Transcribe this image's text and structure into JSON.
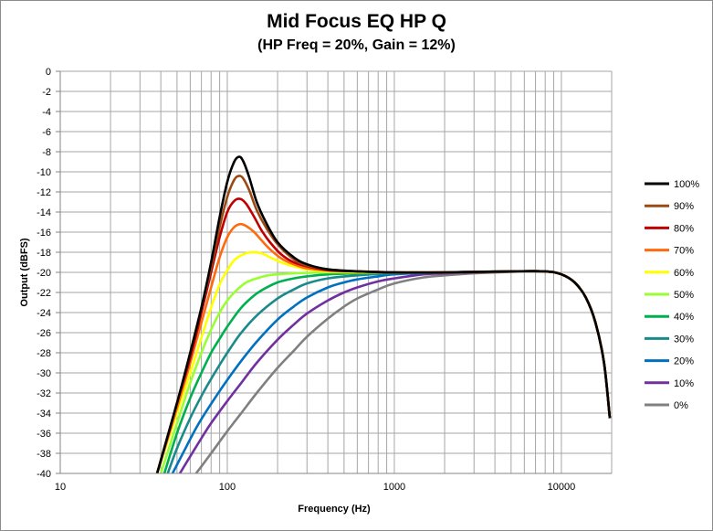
{
  "chart_data": {
    "type": "line",
    "title": "Mid Focus EQ HP Q",
    "subtitle": "(HP Freq = 20%, Gain = 12%)",
    "xlabel": "Frequency (Hz)",
    "ylabel": "Output (dBFS)",
    "xscale": "log",
    "xlim": [
      10,
      20000
    ],
    "ylim": [
      -40,
      0
    ],
    "x_ticks": [
      "10",
      "100",
      "1000",
      "10000"
    ],
    "y_ticks": [
      "0",
      "-2",
      "-4",
      "-6",
      "-8",
      "-10",
      "-12",
      "-14",
      "-16",
      "-18",
      "-20",
      "-22",
      "-24",
      "-26",
      "-28",
      "-30",
      "-32",
      "-34",
      "-36",
      "-38",
      "-40"
    ],
    "grid": true,
    "legend_position": "right",
    "series": [
      {
        "name": "100%",
        "color": "#000000",
        "x": [
          38,
          50,
          60,
          70,
          80,
          90,
          100,
          110,
          118,
          125,
          135,
          150,
          170,
          200,
          250,
          300,
          400,
          600,
          1000,
          2000,
          5000,
          8000,
          10000,
          12000,
          14000,
          16000,
          18000,
          19500
        ],
        "y": [
          -40,
          -33,
          -28,
          -23.5,
          -19,
          -14.5,
          -11,
          -9,
          -8.5,
          -9,
          -10.5,
          -13,
          -15,
          -17,
          -18.5,
          -19.2,
          -19.7,
          -19.9,
          -20,
          -20,
          -19.9,
          -19.9,
          -20.2,
          -21,
          -22.5,
          -25,
          -29,
          -34.5
        ]
      },
      {
        "name": "90%",
        "color": "#9c4a14",
        "x": [
          38,
          50,
          60,
          70,
          80,
          90,
          100,
          110,
          118,
          125,
          135,
          150,
          170,
          200,
          250,
          300,
          400,
          600,
          1000,
          2000,
          5000,
          8000,
          10000,
          12000,
          14000,
          16000,
          18000,
          19500
        ],
        "y": [
          -40,
          -33,
          -28,
          -23.5,
          -19.5,
          -15.5,
          -12.5,
          -10.8,
          -10.4,
          -10.7,
          -11.8,
          -13.8,
          -15.5,
          -17.2,
          -18.7,
          -19.3,
          -19.7,
          -19.9,
          -20,
          -20,
          -19.9,
          -19.9,
          -20.2,
          -21,
          -22.5,
          -25,
          -29,
          -34.5
        ]
      },
      {
        "name": "80%",
        "color": "#c00000",
        "x": [
          38,
          50,
          60,
          70,
          80,
          90,
          100,
          110,
          120,
          130,
          145,
          160,
          180,
          210,
          250,
          300,
          400,
          600,
          1000,
          2000,
          5000,
          8000,
          10000,
          12000,
          14000,
          16000,
          18000,
          19500
        ],
        "y": [
          -40,
          -33,
          -28.5,
          -24,
          -20,
          -16.5,
          -14,
          -12.9,
          -12.7,
          -13.2,
          -14.5,
          -15.8,
          -17,
          -18.2,
          -19,
          -19.4,
          -19.8,
          -19.9,
          -20,
          -20,
          -19.9,
          -19.9,
          -20.2,
          -21,
          -22.5,
          -25,
          -29,
          -34.5
        ]
      },
      {
        "name": "70%",
        "color": "#ff6a0e",
        "x": [
          38,
          50,
          60,
          70,
          80,
          90,
          100,
          110,
          120,
          130,
          145,
          160,
          180,
          210,
          250,
          300,
          400,
          600,
          1000,
          2000,
          5000,
          8000,
          10000,
          12000,
          14000,
          16000,
          18000,
          19500
        ],
        "y": [
          -40,
          -33.5,
          -29,
          -25,
          -21.5,
          -18.5,
          -16.5,
          -15.5,
          -15.2,
          -15.4,
          -16,
          -16.8,
          -17.7,
          -18.6,
          -19.2,
          -19.6,
          -19.8,
          -19.9,
          -20,
          -20,
          -19.9,
          -19.9,
          -20.2,
          -21,
          -22.5,
          -25,
          -29,
          -34.5
        ]
      },
      {
        "name": "60%",
        "color": "#ffff00",
        "x": [
          38,
          50,
          60,
          70,
          80,
          90,
          100,
          110,
          125,
          140,
          160,
          180,
          210,
          250,
          300,
          400,
          600,
          1000,
          2000,
          5000,
          8000,
          10000,
          12000,
          14000,
          16000,
          18000,
          19500
        ],
        "y": [
          -40,
          -34,
          -30,
          -26.5,
          -23.5,
          -21.2,
          -19.8,
          -18.8,
          -18.2,
          -18,
          -18.1,
          -18.5,
          -19,
          -19.4,
          -19.7,
          -19.9,
          -20,
          -20,
          -20,
          -19.9,
          -19.9,
          -20.2,
          -21,
          -22.5,
          -25,
          -29,
          -34.5
        ]
      },
      {
        "name": "50%",
        "color": "#99ff33",
        "x": [
          40,
          50,
          60,
          70,
          80,
          90,
          100,
          115,
          130,
          150,
          175,
          200,
          250,
          300,
          400,
          600,
          1000,
          2000,
          5000,
          8000,
          10000,
          12000,
          14000,
          16000,
          18000,
          19500
        ],
        "y": [
          -40,
          -35,
          -31,
          -28,
          -25.7,
          -24,
          -22.8,
          -21.7,
          -21,
          -20.6,
          -20.3,
          -20.2,
          -20.1,
          -20.05,
          -20,
          -20,
          -20,
          -20,
          -19.9,
          -19.9,
          -20.2,
          -21,
          -22.5,
          -25,
          -29,
          -34.5
        ]
      },
      {
        "name": "40%",
        "color": "#00b050",
        "x": [
          42,
          50,
          60,
          70,
          80,
          90,
          100,
          120,
          140,
          160,
          200,
          250,
          300,
          400,
          600,
          1000,
          2000,
          5000,
          8000,
          10000,
          12000,
          14000,
          16000,
          18000,
          19500
        ],
        "y": [
          -40,
          -36,
          -32.5,
          -30,
          -28,
          -26.6,
          -25.4,
          -23.6,
          -22.5,
          -21.8,
          -21,
          -20.6,
          -20.4,
          -20.2,
          -20.1,
          -20,
          -20,
          -19.9,
          -19.9,
          -20.2,
          -21,
          -22.5,
          -25,
          -29,
          -34.5
        ]
      },
      {
        "name": "30%",
        "color": "#1a8a8a",
        "x": [
          44,
          50,
          60,
          70,
          80,
          90,
          100,
          120,
          150,
          200,
          250,
          300,
          400,
          600,
          1000,
          2000,
          5000,
          8000,
          10000,
          12000,
          14000,
          16000,
          18000,
          19500
        ],
        "y": [
          -40,
          -37.5,
          -34.5,
          -32.3,
          -30.6,
          -29.2,
          -28,
          -26.1,
          -24.3,
          -22.6,
          -21.7,
          -21.1,
          -20.6,
          -20.3,
          -20.1,
          -20,
          -19.9,
          -19.9,
          -20.2,
          -21,
          -22.5,
          -25,
          -29,
          -34.5
        ]
      },
      {
        "name": "20%",
        "color": "#0070c0",
        "x": [
          47,
          55,
          65,
          75,
          90,
          100,
          120,
          150,
          200,
          250,
          300,
          400,
          500,
          600,
          800,
          1000,
          2000,
          5000,
          8000,
          10000,
          12000,
          14000,
          16000,
          18000,
          19500
        ],
        "y": [
          -40,
          -37.8,
          -35.5,
          -33.8,
          -31.8,
          -30.7,
          -28.9,
          -26.9,
          -24.7,
          -23.4,
          -22.5,
          -21.5,
          -21,
          -20.7,
          -20.4,
          -20.2,
          -20,
          -19.9,
          -19.9,
          -20.2,
          -21,
          -22.5,
          -25,
          -29,
          -34.5
        ]
      },
      {
        "name": "10%",
        "color": "#7030a0",
        "x": [
          52,
          60,
          70,
          80,
          100,
          120,
          150,
          200,
          250,
          300,
          400,
          500,
          600,
          800,
          1000,
          1500,
          2000,
          5000,
          8000,
          10000,
          12000,
          14000,
          16000,
          18000,
          19500
        ],
        "y": [
          -40,
          -38.3,
          -36.5,
          -35,
          -32.8,
          -31.1,
          -29,
          -26.7,
          -25.2,
          -24.1,
          -22.8,
          -22,
          -21.5,
          -20.9,
          -20.6,
          -20.2,
          -20.1,
          -19.9,
          -19.9,
          -20.2,
          -21,
          -22.5,
          -25,
          -29,
          -34.5
        ]
      },
      {
        "name": "0%",
        "color": "#808080",
        "x": [
          65,
          70,
          80,
          100,
          120,
          150,
          200,
          250,
          300,
          400,
          500,
          600,
          800,
          1000,
          1500,
          2000,
          3000,
          5000,
          8000,
          10000,
          12000,
          14000,
          16000,
          18000,
          19500
        ],
        "y": [
          -40,
          -39.3,
          -38,
          -35.8,
          -34.1,
          -32,
          -29.5,
          -27.8,
          -26.4,
          -24.6,
          -23.4,
          -22.6,
          -21.7,
          -21.1,
          -20.5,
          -20.3,
          -20.1,
          -19.95,
          -19.9,
          -20.2,
          -21,
          -22.5,
          -25,
          -29,
          -34.5
        ]
      }
    ]
  }
}
